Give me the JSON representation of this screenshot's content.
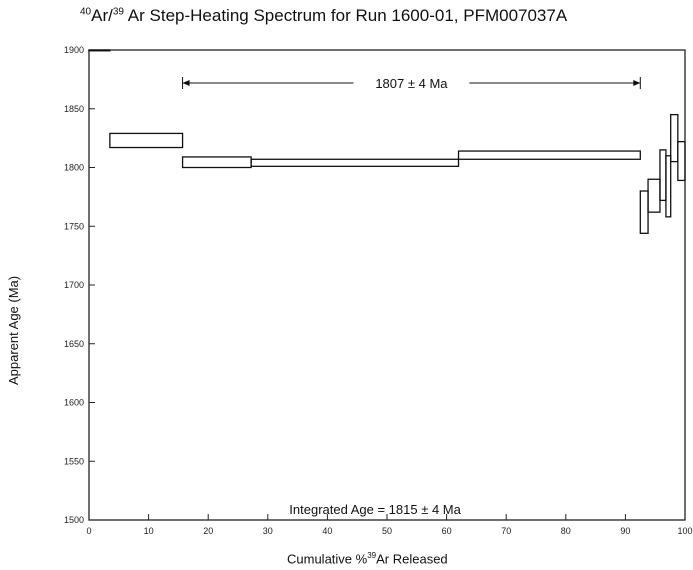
{
  "chart_data": {
    "type": "step",
    "title": {
      "prefix_sup": "40",
      "part1": "Ar/",
      "part2_sup": "39",
      "part3": "Ar Step-Heating Spectrum for Run 1600-01, PFM007037A"
    },
    "ylabel": "Apparent Age (Ma)",
    "xlabel": {
      "part1": "Cumulative %",
      "sup": "39",
      "part2": "Ar Released"
    },
    "xlim": [
      0,
      100
    ],
    "ylim": [
      1500,
      1900
    ],
    "xticks": [
      0,
      10,
      20,
      30,
      40,
      50,
      60,
      70,
      80,
      90,
      100
    ],
    "yticks": [
      1500,
      1550,
      1600,
      1650,
      1700,
      1750,
      1800,
      1850,
      1900
    ],
    "grid": false,
    "plateau": {
      "label": "1807 ± 4 Ma",
      "x_start": 15.7,
      "x_end": 92.5
    },
    "integrated_age_label": "Integrated Age = 1815 ± 4 Ma",
    "steps": [
      {
        "x0": 0.0,
        "x1": 3.5,
        "low": 1900,
        "high": 1900
      },
      {
        "x0": 3.5,
        "x1": 15.7,
        "low": 1817,
        "high": 1829
      },
      {
        "x0": 15.7,
        "x1": 27.2,
        "low": 1800,
        "high": 1809
      },
      {
        "x0": 27.2,
        "x1": 62.0,
        "low": 1801,
        "high": 1807
      },
      {
        "x0": 62.0,
        "x1": 92.5,
        "low": 1807,
        "high": 1814
      },
      {
        "x0": 92.5,
        "x1": 93.8,
        "low": 1744,
        "high": 1780
      },
      {
        "x0": 93.8,
        "x1": 95.8,
        "low": 1762,
        "high": 1790
      },
      {
        "x0": 95.8,
        "x1": 96.8,
        "low": 1772,
        "high": 1815
      },
      {
        "x0": 96.8,
        "x1": 97.6,
        "low": 1758,
        "high": 1810
      },
      {
        "x0": 97.6,
        "x1": 98.8,
        "low": 1805,
        "high": 1845
      },
      {
        "x0": 98.8,
        "x1": 100.0,
        "low": 1789,
        "high": 1822
      }
    ]
  }
}
